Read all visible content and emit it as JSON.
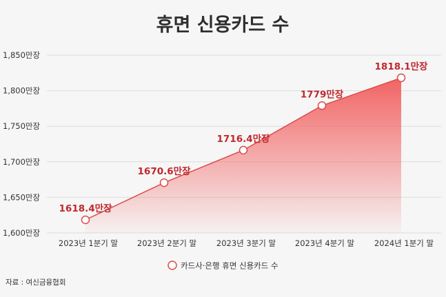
{
  "chart_data": {
    "type": "area",
    "title": "휴면 신용카드 수",
    "categories": [
      "2023년 1분기 말",
      "2023년 2분기 말",
      "2023년 3분기 말",
      "2023년 4분기 말",
      "2024년 1분기 말"
    ],
    "series": [
      {
        "name": "카드사·은행 휴면 신용카드 수",
        "values": [
          1618.4,
          1670.6,
          1716.4,
          1779,
          1818.1
        ],
        "labels": [
          "1618.4만장",
          "1670.6만장",
          "1716.4만장",
          "1779만장",
          "1818.1만장"
        ]
      }
    ],
    "ylim": [
      1600,
      1850
    ],
    "yticks": [
      1600,
      1650,
      1700,
      1750,
      1800,
      1850
    ],
    "ytick_labels": [
      "1,600만장",
      "1,650만장",
      "1,700만장",
      "1,750만장",
      "1,800만장",
      "1,850만장"
    ],
    "xlabel": "",
    "ylabel": "",
    "grid": true,
    "legend_position": "bottom-center"
  },
  "source": "자료 : 여신금융협회",
  "colors": {
    "line": "#dc4b4b",
    "fill_top": "#f25c5c",
    "label": "#c0282d",
    "marker_fill": "#ffffff",
    "grid": "#dcdcdc",
    "background": "#f6f6f6"
  }
}
